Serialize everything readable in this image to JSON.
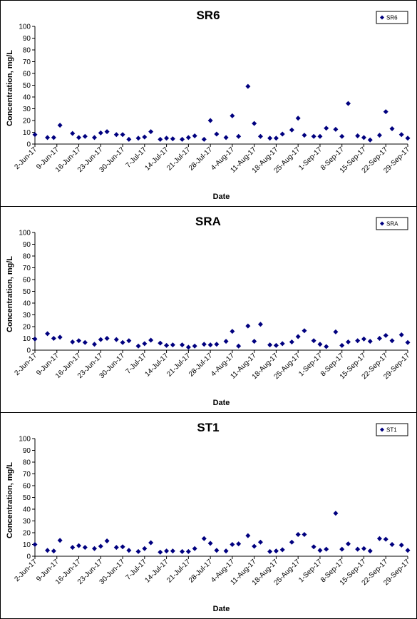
{
  "colors": {
    "marker": "#00007f",
    "axis": "#000000",
    "background": "#ffffff"
  },
  "chart_data": [
    {
      "type": "scatter",
      "title": "SR6",
      "xlabel": "Date",
      "ylabel": "Concentration, mg/L",
      "ylim": [
        0,
        100
      ],
      "yticks": [
        0,
        10,
        20,
        30,
        40,
        50,
        60,
        70,
        80,
        90,
        100
      ],
      "xlim": [
        "2017-06-02",
        "2017-09-29"
      ],
      "xtick_labels": [
        "2-Jun-17",
        "9-Jun-17",
        "16-Jun-17",
        "23-Jun-17",
        "30-Jun-17",
        "7-Jul-17",
        "14-Jul-17",
        "21-Jul-17",
        "28-Jul-17",
        "4-Aug-17",
        "11-Aug-17",
        "18-Aug-17",
        "25-Aug-17",
        "1-Sep-17",
        "8-Sep-17",
        "15-Sep-17",
        "22-Sep-17",
        "29-Sep-17"
      ],
      "grid": false,
      "legend": "top-right",
      "series": [
        {
          "name": "SR6",
          "x": [
            "2017-06-02",
            "2017-06-06",
            "2017-06-08",
            "2017-06-10",
            "2017-06-14",
            "2017-06-16",
            "2017-06-18",
            "2017-06-21",
            "2017-06-23",
            "2017-06-25",
            "2017-06-28",
            "2017-06-30",
            "2017-07-02",
            "2017-07-05",
            "2017-07-07",
            "2017-07-09",
            "2017-07-12",
            "2017-07-14",
            "2017-07-16",
            "2017-07-19",
            "2017-07-21",
            "2017-07-23",
            "2017-07-26",
            "2017-07-28",
            "2017-07-30",
            "2017-08-02",
            "2017-08-04",
            "2017-08-06",
            "2017-08-09",
            "2017-08-11",
            "2017-08-13",
            "2017-08-16",
            "2017-08-18",
            "2017-08-20",
            "2017-08-23",
            "2017-08-25",
            "2017-08-27",
            "2017-08-30",
            "2017-09-01",
            "2017-09-03",
            "2017-09-06",
            "2017-09-08",
            "2017-09-10",
            "2017-09-13",
            "2017-09-15",
            "2017-09-17",
            "2017-09-20",
            "2017-09-22",
            "2017-09-24",
            "2017-09-27",
            "2017-09-29"
          ],
          "values": [
            8,
            5.5,
            5.5,
            16,
            9,
            5.5,
            6.5,
            5.5,
            9.5,
            10.5,
            8,
            8,
            4,
            5,
            6,
            10.5,
            4,
            5,
            4.5,
            4,
            5.5,
            7,
            4,
            20,
            8.5,
            5.5,
            24,
            6.5,
            49,
            17.5,
            6.5,
            5,
            5,
            8.5,
            12,
            22,
            7.5,
            6.5,
            6.5,
            13.5,
            12.5,
            6.5,
            34.5,
            7,
            5.5,
            3.5,
            7.5,
            27.5,
            13,
            8,
            5
          ]
        }
      ]
    },
    {
      "type": "scatter",
      "title": "SRA",
      "xlabel": "Date",
      "ylabel": "Concentration, mg/L",
      "ylim": [
        0,
        100
      ],
      "yticks": [
        0,
        10,
        20,
        30,
        40,
        50,
        60,
        70,
        80,
        90,
        100
      ],
      "xlim": [
        "2017-06-02",
        "2017-09-29"
      ],
      "xtick_labels": [
        "2-Jun-17",
        "9-Jun-17",
        "16-Jun-17",
        "23-Jun-17",
        "30-Jun-17",
        "7-Jul-17",
        "14-Jul-17",
        "21-Jul-17",
        "28-Jul-17",
        "4-Aug-17",
        "11-Aug-17",
        "18-Aug-17",
        "25-Aug-17",
        "1-Sep-17",
        "8-Sep-17",
        "15-Sep-17",
        "22-Sep-17",
        "29-Sep-17"
      ],
      "grid": false,
      "legend": "top-right",
      "series": [
        {
          "name": "SRA",
          "x": [
            "2017-06-02",
            "2017-06-06",
            "2017-06-08",
            "2017-06-10",
            "2017-06-14",
            "2017-06-16",
            "2017-06-18",
            "2017-06-21",
            "2017-06-23",
            "2017-06-25",
            "2017-06-28",
            "2017-06-30",
            "2017-07-02",
            "2017-07-05",
            "2017-07-07",
            "2017-07-09",
            "2017-07-12",
            "2017-07-14",
            "2017-07-16",
            "2017-07-19",
            "2017-07-21",
            "2017-07-23",
            "2017-07-26",
            "2017-07-28",
            "2017-07-30",
            "2017-08-02",
            "2017-08-04",
            "2017-08-06",
            "2017-08-09",
            "2017-08-11",
            "2017-08-13",
            "2017-08-16",
            "2017-08-18",
            "2017-08-20",
            "2017-08-23",
            "2017-08-25",
            "2017-08-27",
            "2017-08-30",
            "2017-09-01",
            "2017-09-03",
            "2017-09-06",
            "2017-09-08",
            "2017-09-10",
            "2017-09-13",
            "2017-09-15",
            "2017-09-17",
            "2017-09-20",
            "2017-09-22",
            "2017-09-24",
            "2017-09-27",
            "2017-09-29"
          ],
          "values": [
            9.5,
            14,
            10,
            11,
            7,
            8,
            6.5,
            5,
            9,
            10,
            9,
            6.5,
            8,
            3.5,
            5.5,
            8.5,
            6,
            4,
            4.5,
            4.5,
            2.5,
            3.5,
            5,
            4.5,
            5,
            7.5,
            16,
            3.5,
            20.5,
            7.5,
            22,
            4.5,
            4,
            5.5,
            7,
            11.5,
            16.5,
            8,
            5,
            3,
            15.5,
            4,
            7,
            8,
            9.5,
            7.5,
            10,
            12.5,
            8,
            13,
            6.5
          ]
        }
      ]
    },
    {
      "type": "scatter",
      "title": "ST1",
      "xlabel": "Date",
      "ylabel": "Concentration, mg/L",
      "ylim": [
        0,
        100
      ],
      "yticks": [
        0,
        10,
        20,
        30,
        40,
        50,
        60,
        70,
        80,
        90,
        100
      ],
      "xlim": [
        "2017-06-02",
        "2017-09-29"
      ],
      "xtick_labels": [
        "2-Jun-17",
        "9-Jun-17",
        "16-Jun-17",
        "23-Jun-17",
        "30-Jun-17",
        "7-Jul-17",
        "14-Jul-17",
        "21-Jul-17",
        "28-Jul-17",
        "4-Aug-17",
        "11-Aug-17",
        "18-Aug-17",
        "25-Aug-17",
        "1-Sep-17",
        "8-Sep-17",
        "15-Sep-17",
        "22-Sep-17",
        "29-Sep-17"
      ],
      "grid": false,
      "legend": "top-right",
      "series": [
        {
          "name": "ST1",
          "x": [
            "2017-06-02",
            "2017-06-06",
            "2017-06-08",
            "2017-06-10",
            "2017-06-14",
            "2017-06-16",
            "2017-06-18",
            "2017-06-21",
            "2017-06-23",
            "2017-06-25",
            "2017-06-28",
            "2017-06-30",
            "2017-07-02",
            "2017-07-05",
            "2017-07-07",
            "2017-07-09",
            "2017-07-12",
            "2017-07-14",
            "2017-07-16",
            "2017-07-19",
            "2017-07-21",
            "2017-07-23",
            "2017-07-26",
            "2017-07-28",
            "2017-07-30",
            "2017-08-02",
            "2017-08-04",
            "2017-08-06",
            "2017-08-09",
            "2017-08-11",
            "2017-08-13",
            "2017-08-16",
            "2017-08-18",
            "2017-08-20",
            "2017-08-23",
            "2017-08-25",
            "2017-08-27",
            "2017-08-30",
            "2017-09-01",
            "2017-09-03",
            "2017-09-06",
            "2017-09-08",
            "2017-09-10",
            "2017-09-13",
            "2017-09-15",
            "2017-09-17",
            "2017-09-20",
            "2017-09-22",
            "2017-09-24",
            "2017-09-27",
            "2017-09-29"
          ],
          "values": [
            10,
            5,
            4.5,
            13.5,
            7.5,
            9,
            7.5,
            6.5,
            8.5,
            13,
            7.5,
            8,
            5,
            4,
            6.5,
            11.5,
            3.5,
            4.5,
            4.5,
            4,
            4,
            6.5,
            15,
            11,
            5,
            4.5,
            10,
            10.5,
            17.5,
            8.5,
            12,
            4,
            4.5,
            5.5,
            12,
            18.5,
            18.5,
            8,
            5,
            6,
            36.5,
            6,
            10.5,
            6,
            6.5,
            4.5,
            15,
            14.5,
            10,
            9.5,
            5
          ]
        }
      ]
    }
  ]
}
